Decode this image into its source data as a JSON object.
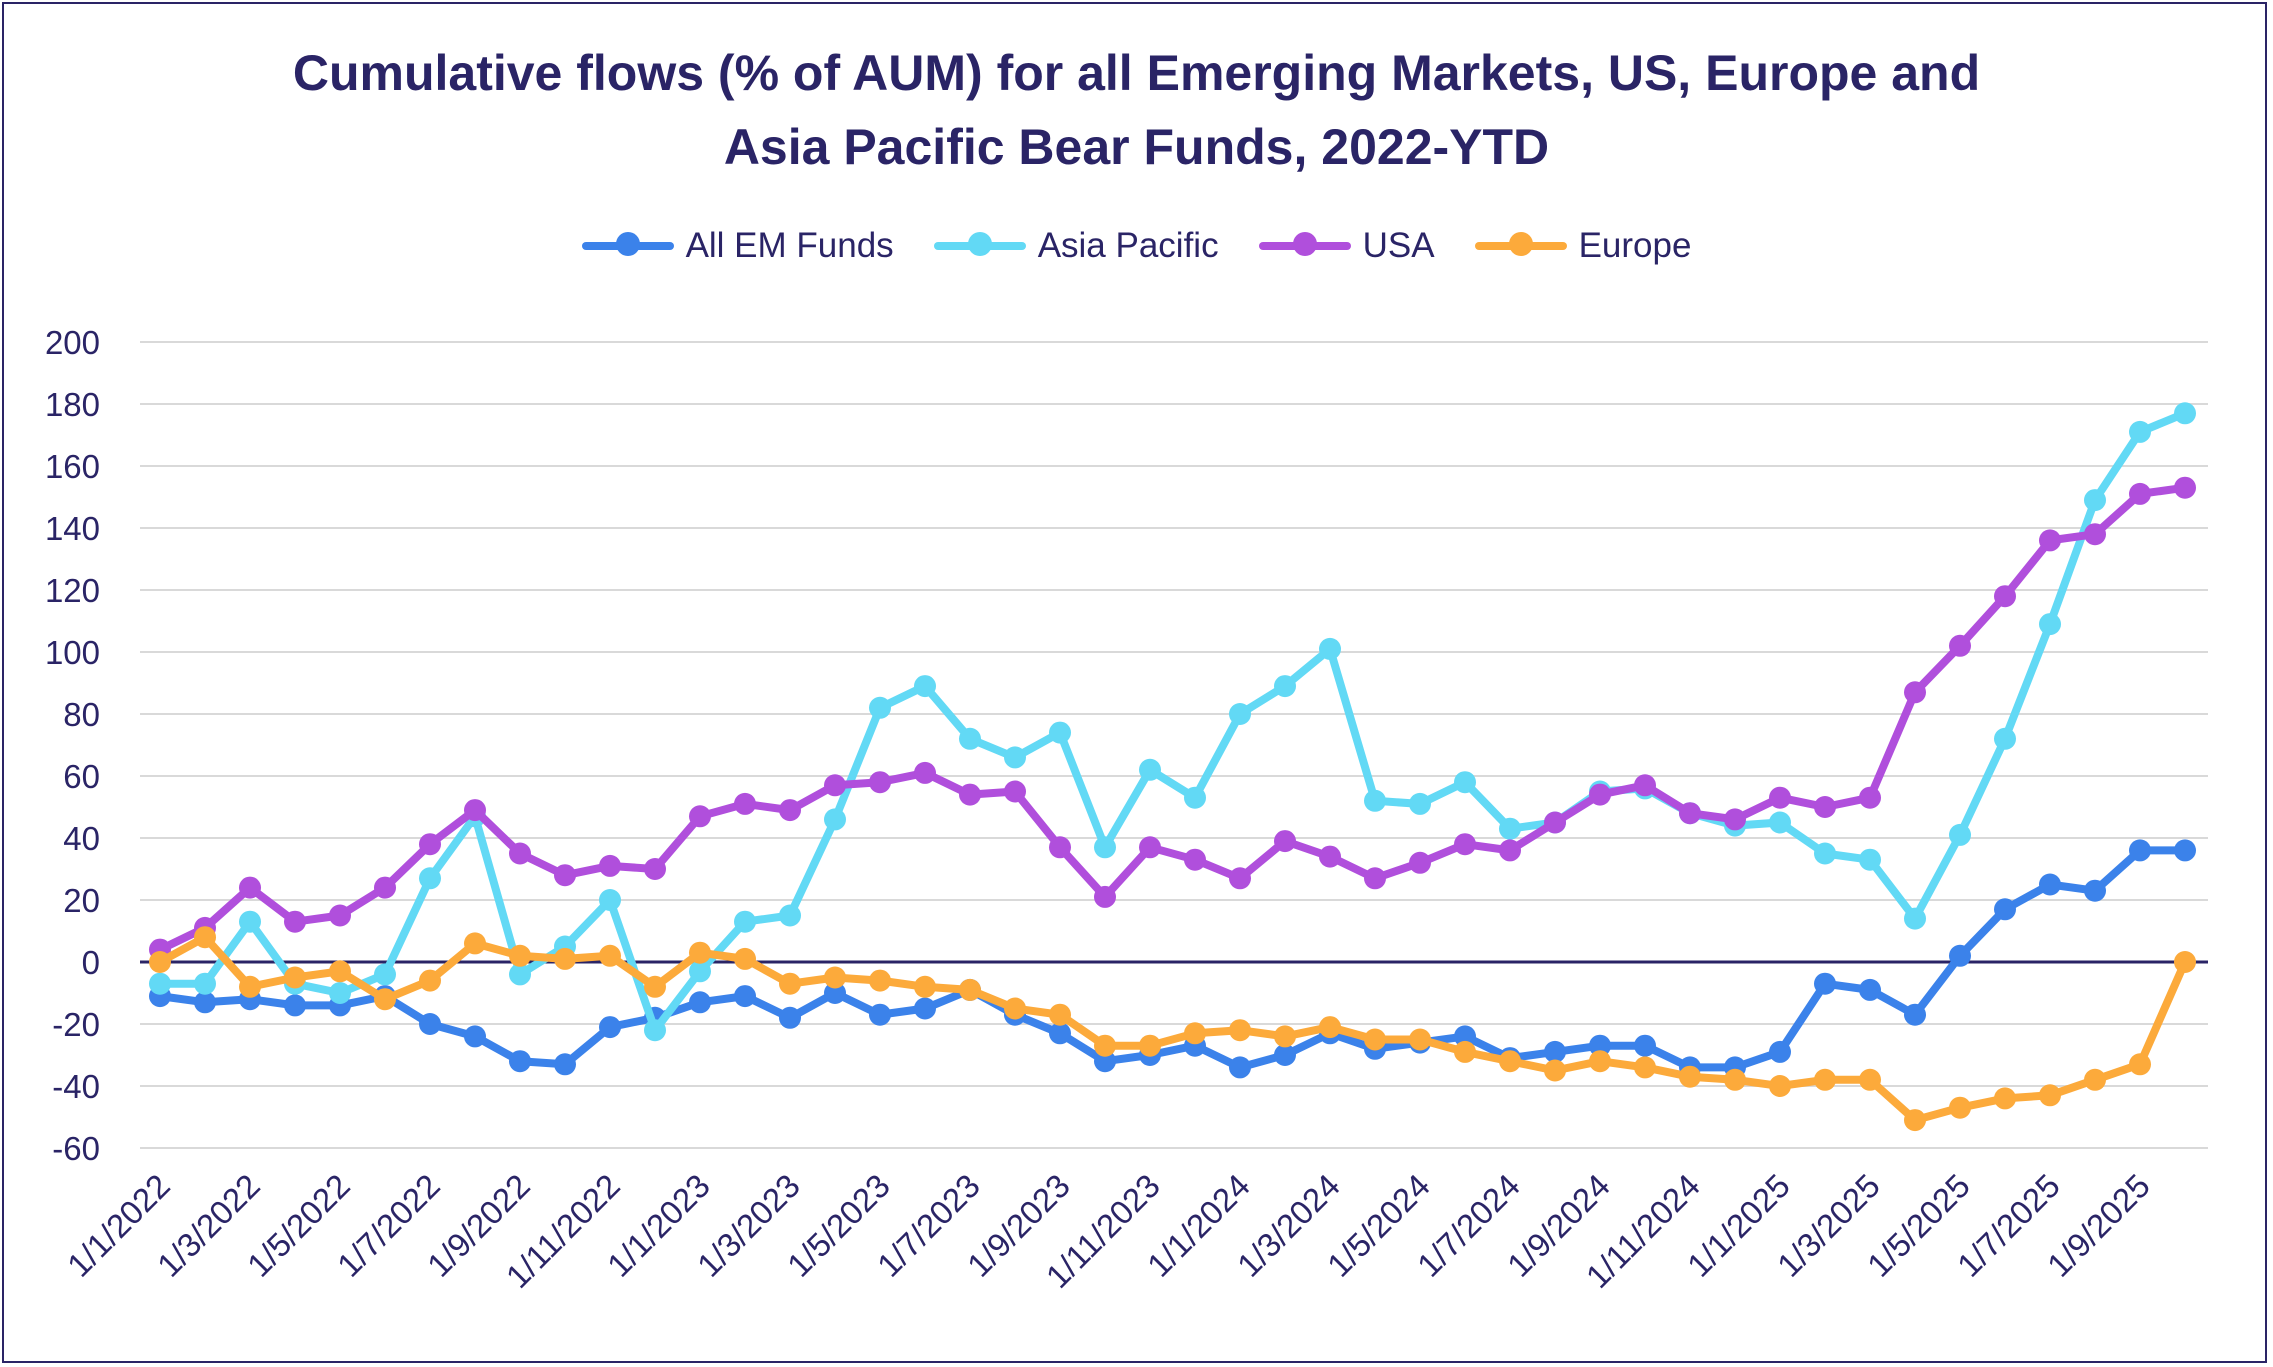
{
  "chart_data": {
    "type": "line",
    "title": "Cumulative flows (% of AUM) for all Emerging Markets, US, Europe and Asia Pacific Bear Funds, 2022-YTD",
    "title_lines": [
      "Cumulative flows (% of AUM) for all Emerging Markets, US, Europe and",
      "Asia Pacific Bear Funds, 2022-YTD"
    ],
    "xlabel": "",
    "ylabel": "",
    "ylim": [
      -60,
      200
    ],
    "yticks": [
      -60,
      -40,
      -20,
      0,
      20,
      40,
      60,
      80,
      100,
      120,
      140,
      160,
      180,
      200
    ],
    "x": [
      "1/1/2022",
      "1/2/2022",
      "1/3/2022",
      "1/4/2022",
      "1/5/2022",
      "1/6/2022",
      "1/7/2022",
      "1/8/2022",
      "1/9/2022",
      "1/10/2022",
      "1/11/2022",
      "1/12/2022",
      "1/1/2023",
      "1/2/2023",
      "1/3/2023",
      "1/4/2023",
      "1/5/2023",
      "1/6/2023",
      "1/7/2023",
      "1/8/2023",
      "1/9/2023",
      "1/10/2023",
      "1/11/2023",
      "1/12/2023",
      "1/1/2024",
      "1/2/2024",
      "1/3/2024",
      "1/4/2024",
      "1/5/2024",
      "1/6/2024",
      "1/7/2024",
      "1/8/2024",
      "1/9/2024",
      "1/10/2024",
      "1/11/2024",
      "1/12/2024",
      "1/1/2025",
      "1/2/2025",
      "1/3/2025",
      "1/4/2025",
      "1/5/2025",
      "1/6/2025",
      "1/7/2025",
      "1/8/2025",
      "1/9/2025",
      "1/10/2025"
    ],
    "x_tick_labels": [
      "1/1/2022",
      "1/3/2022",
      "1/5/2022",
      "1/7/2022",
      "1/9/2022",
      "1/11/2022",
      "1/1/2023",
      "1/3/2023",
      "1/5/2023",
      "1/7/2023",
      "1/9/2023",
      "1/11/2023",
      "1/1/2024",
      "1/3/2024",
      "1/5/2024",
      "1/7/2024",
      "1/9/2024",
      "1/11/2024",
      "1/1/2025",
      "1/3/2025",
      "1/5/2025",
      "1/7/2025",
      "1/9/2025"
    ],
    "grid": true,
    "legend_position": "top",
    "series": [
      {
        "name": "All EM Funds",
        "color": "#3b82ea",
        "values": [
          -11,
          -13,
          -12,
          -14,
          -14,
          -11,
          -20,
          -24,
          -32,
          -33,
          -21,
          -18,
          -13,
          -11,
          -18,
          -10,
          -17,
          -15,
          -9,
          -17,
          -23,
          -32,
          -30,
          -27,
          -34,
          -30,
          -23,
          -28,
          -26,
          -24,
          -31,
          -29,
          -27,
          -27,
          -34,
          -34,
          -29,
          -7,
          -9,
          -17,
          2,
          17,
          25,
          23,
          36,
          36
        ]
      },
      {
        "name": "Asia Pacific",
        "color": "#62d9f5",
        "values": [
          -7,
          -7,
          13,
          -7,
          -10,
          -4,
          27,
          47,
          -4,
          5,
          20,
          -22,
          -3,
          13,
          15,
          46,
          82,
          89,
          72,
          66,
          74,
          37,
          62,
          53,
          80,
          89,
          101,
          52,
          51,
          58,
          43,
          45,
          55,
          56,
          48,
          44,
          45,
          35,
          33,
          14,
          41,
          72,
          109,
          149,
          171,
          177
        ]
      },
      {
        "name": "USA",
        "color": "#b04fdc",
        "values": [
          4,
          11,
          24,
          13,
          15,
          24,
          38,
          49,
          35,
          28,
          31,
          30,
          47,
          51,
          49,
          57,
          58,
          61,
          54,
          55,
          37,
          21,
          37,
          33,
          27,
          39,
          34,
          27,
          32,
          38,
          36,
          45,
          54,
          57,
          48,
          46,
          53,
          50,
          53,
          87,
          102,
          118,
          136,
          138,
          151,
          153
        ]
      },
      {
        "name": "Europe",
        "color": "#fcaa3b",
        "values": [
          0,
          8,
          -8,
          -5,
          -3,
          -12,
          -6,
          6,
          2,
          1,
          2,
          -8,
          3,
          1,
          -7,
          -5,
          -6,
          -8,
          -9,
          -15,
          -17,
          -27,
          -27,
          -23,
          -22,
          -24,
          -21,
          -25,
          -25,
          -29,
          -32,
          -35,
          -32,
          -34,
          -37,
          -38,
          -40,
          -38,
          -38,
          -51,
          -47,
          -44,
          -43,
          -38,
          -33,
          0
        ]
      }
    ]
  }
}
